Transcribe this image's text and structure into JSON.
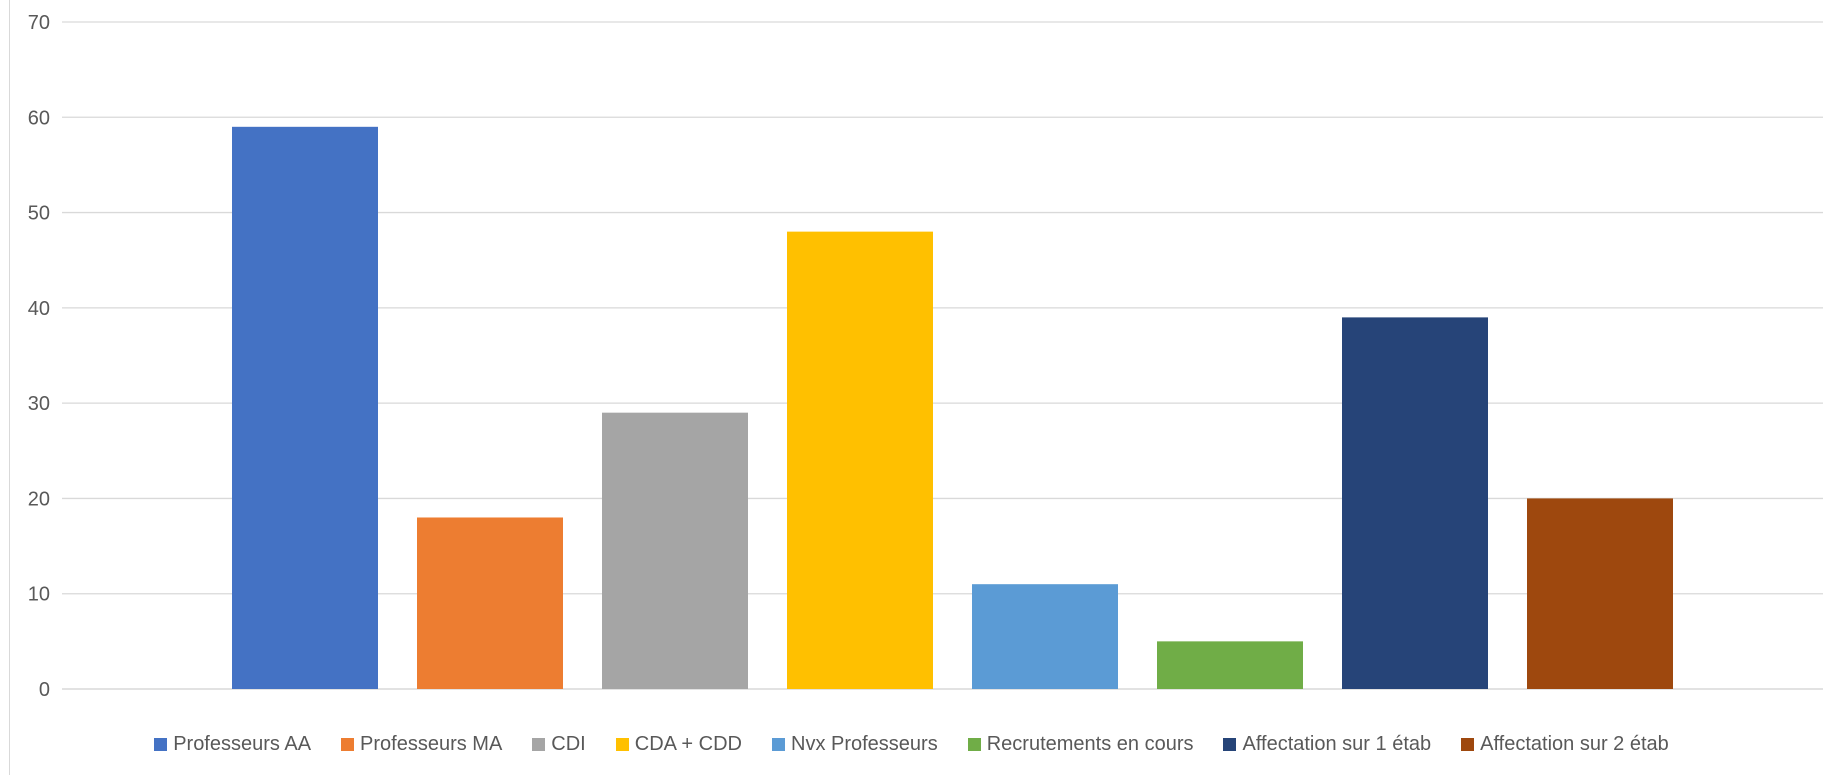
{
  "chart_data": {
    "type": "bar",
    "title": "",
    "xlabel": "",
    "ylabel": "",
    "ylim": [
      0,
      70
    ],
    "yticks": [
      0,
      10,
      20,
      30,
      40,
      50,
      60,
      70
    ],
    "grid": true,
    "legend_position": "bottom",
    "series": [
      {
        "name": "Professeurs AA",
        "value": 59,
        "color": "#4472C4"
      },
      {
        "name": "Professeurs MA",
        "value": 18,
        "color": "#ED7D31"
      },
      {
        "name": "CDI",
        "value": 29,
        "color": "#A5A5A5"
      },
      {
        "name": "CDA + CDD",
        "value": 48,
        "color": "#FFC000"
      },
      {
        "name": "Nvx Professeurs",
        "value": 11,
        "color": "#5B9BD5"
      },
      {
        "name": "Recrutements en cours",
        "value": 5,
        "color": "#70AD47"
      },
      {
        "name": "Affectation sur 1 étab",
        "value": 39,
        "color": "#264478"
      },
      {
        "name": "Affectation sur 2 étab",
        "value": 20,
        "color": "#9E480E"
      }
    ]
  }
}
